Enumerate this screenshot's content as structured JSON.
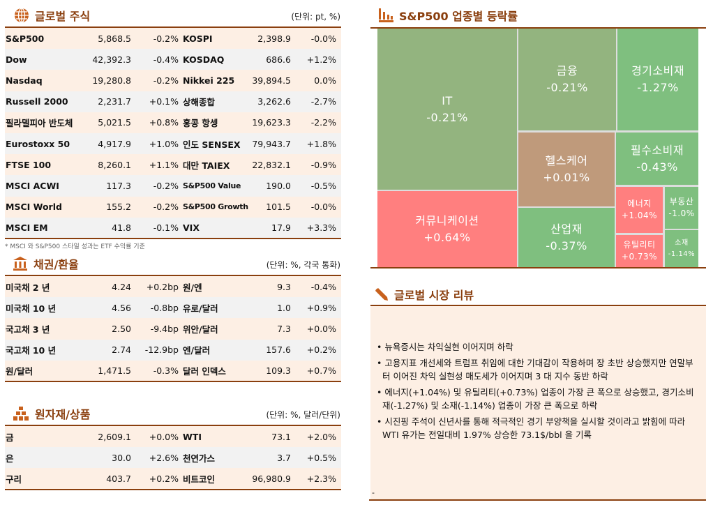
{
  "stocks": {
    "title": "글로벌 주식",
    "unit": "(단위: pt, %)",
    "icon": "globe-icon",
    "rows": [
      [
        "S&P500",
        "5,868.5",
        "-0.2%",
        "KOSPI",
        "2,398.9",
        "-0.0%"
      ],
      [
        "Dow",
        "42,392.3",
        "-0.4%",
        "KOSDAQ",
        "686.6",
        "+1.2%"
      ],
      [
        "Nasdaq",
        "19,280.8",
        "-0.2%",
        "Nikkei 225",
        "39,894.5",
        "0.0%"
      ],
      [
        "Russell 2000",
        "2,231.7",
        "+0.1%",
        "상해종합",
        "3,262.6",
        "-2.7%"
      ],
      [
        "필라델피아 반도체",
        "5,021.5",
        "+0.8%",
        "홍콩 항셍",
        "19,623.3",
        "-2.2%"
      ],
      [
        "Eurostoxx 50",
        "4,917.9",
        "+1.0%",
        "인도 SENSEX",
        "79,943.7",
        "+1.8%"
      ],
      [
        "FTSE 100",
        "8,260.1",
        "+1.1%",
        "대만 TAIEX",
        "22,832.1",
        "-0.9%"
      ],
      [
        "MSCI ACWI",
        "117.3",
        "-0.2%",
        "S&P500 Value",
        "190.0",
        "-0.5%"
      ],
      [
        "MSCI World",
        "155.2",
        "-0.2%",
        "S&P500 Growth",
        "101.5",
        "-0.0%"
      ],
      [
        "MSCI EM",
        "41.8",
        "-0.1%",
        "VIX",
        "17.9",
        "+3.3%"
      ]
    ],
    "footnote": "* MSCI 와 S&P500 스타일 성과는 ETF 수익률 기준"
  },
  "bonds": {
    "title": "채권/환율",
    "unit": "(단위: %, 각국 통화)",
    "icon": "bank-icon",
    "rows": [
      [
        "미국채 2 년",
        "4.24",
        "+0.2bp",
        "원/엔",
        "9.3",
        "-0.4%"
      ],
      [
        "미국채 10 년",
        "4.56",
        "-0.8bp",
        "유로/달러",
        "1.0",
        "+0.9%"
      ],
      [
        "국고채 3 년",
        "2.50",
        "-9.4bp",
        "위안/달러",
        "7.3",
        "+0.0%"
      ],
      [
        "국고채 10 년",
        "2.74",
        "-12.9bp",
        "엔/달러",
        "157.6",
        "+0.2%"
      ],
      [
        "원/달러",
        "1,471.5",
        "-0.3%",
        "달러 인덱스",
        "109.3",
        "+0.7%"
      ]
    ]
  },
  "commodities": {
    "title": "원자재/상품",
    "unit": "(단위: %, 달러/단위)",
    "icon": "gold-bars-icon",
    "rows": [
      [
        "금",
        "2,609.1",
        "+0.0%",
        "WTI",
        "73.1",
        "+2.0%"
      ],
      [
        "은",
        "30.0",
        "+2.6%",
        "천연가스",
        "3.7",
        "+0.5%"
      ],
      [
        "구리",
        "403.7",
        "+0.2%",
        "비트코인",
        "96,980.9",
        "+2.3%"
      ]
    ]
  },
  "treemap": {
    "title": "S&P500 업종별 등락률",
    "icon": "bar-chart-icon",
    "colors": {
      "mild_green": "#93b47f",
      "green": "#7fbf7f",
      "brown": "#bf9a7b",
      "red": "#ff7f7f"
    },
    "cells": [
      {
        "name": "IT",
        "value": "-0.21%"
      },
      {
        "name": "커뮤니케이션",
        "value": "+0.64%"
      },
      {
        "name": "금융",
        "value": "-0.21%"
      },
      {
        "name": "경기소비재",
        "value": "-1.27%"
      },
      {
        "name": "헬스케어",
        "value": "+0.01%"
      },
      {
        "name": "산업재",
        "value": "-0.37%"
      },
      {
        "name": "필수소비재",
        "value": "-0.43%"
      },
      {
        "name": "에너지",
        "value": "+1.04%"
      },
      {
        "name": "유틸리티",
        "value": "+0.73%"
      },
      {
        "name": "부동산",
        "value": "-1.0%"
      },
      {
        "name": "소재",
        "value": "-1.14%"
      }
    ]
  },
  "review": {
    "title": "글로벌 시장 리뷰",
    "icon": "pen-icon",
    "bullets": [
      "• 뉴욕증시는 차익실현 이어지며 하락",
      "• 고용지표 개선세와 트럼프 취임에 대한 기대감이 작용하며 장 초반 상승했지만 연말부터 이어진 차익 실현성 매도세가 이어지며 3 대 지수 동반 하락",
      "• 에너지(+1.04%) 및 유틸리티(+0.73%) 업종이 가장 큰 폭으로 상승했고, 경기소비재(-1.27%) 및 소재(-1.14%) 업종이 가장 큰 폭으로 하락",
      "• 시진핑 주석이 신년사를 통해 적극적인 경기 부양책을 실시할 것이라고 밝힘에 따라 WTI 유가는 전일대비 1.97% 상승한 73.1$/bbl 을 기록"
    ],
    "footer_mark": "-"
  }
}
